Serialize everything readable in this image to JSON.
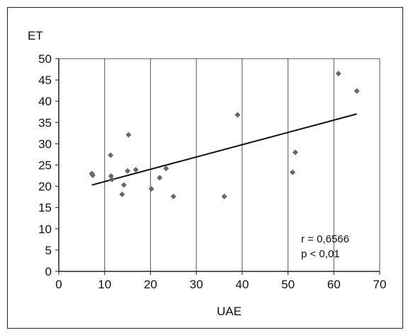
{
  "chart_data": {
    "type": "scatter",
    "title": "",
    "xlabel": "UAE",
    "ylabel": "ET",
    "xlim": [
      0,
      70
    ],
    "ylim": [
      0,
      50
    ],
    "xticks": [
      0,
      10,
      20,
      30,
      40,
      50,
      60,
      70
    ],
    "yticks": [
      0,
      5,
      10,
      15,
      20,
      25,
      30,
      35,
      40,
      45,
      50
    ],
    "grid": "vertical",
    "points": [
      {
        "x": 7.2,
        "y": 23.0
      },
      {
        "x": 7.4,
        "y": 22.6
      },
      {
        "x": 11.3,
        "y": 27.3
      },
      {
        "x": 11.4,
        "y": 22.4
      },
      {
        "x": 11.6,
        "y": 21.6
      },
      {
        "x": 13.8,
        "y": 18.1
      },
      {
        "x": 14.2,
        "y": 20.3
      },
      {
        "x": 15.0,
        "y": 23.6
      },
      {
        "x": 15.2,
        "y": 32.1
      },
      {
        "x": 16.8,
        "y": 23.9
      },
      {
        "x": 20.2,
        "y": 19.4
      },
      {
        "x": 22.0,
        "y": 22.0
      },
      {
        "x": 23.4,
        "y": 24.2
      },
      {
        "x": 25.0,
        "y": 17.6
      },
      {
        "x": 36.1,
        "y": 17.6
      },
      {
        "x": 39.0,
        "y": 36.8
      },
      {
        "x": 51.0,
        "y": 23.3
      },
      {
        "x": 51.6,
        "y": 28.0
      },
      {
        "x": 61.0,
        "y": 46.5
      },
      {
        "x": 65.0,
        "y": 42.4
      }
    ],
    "trendline": {
      "x": [
        7.2,
        65.0
      ],
      "y": [
        20.3,
        37.0
      ]
    },
    "annotations": [
      "r = 0,6566",
      "p < 0,01"
    ]
  }
}
